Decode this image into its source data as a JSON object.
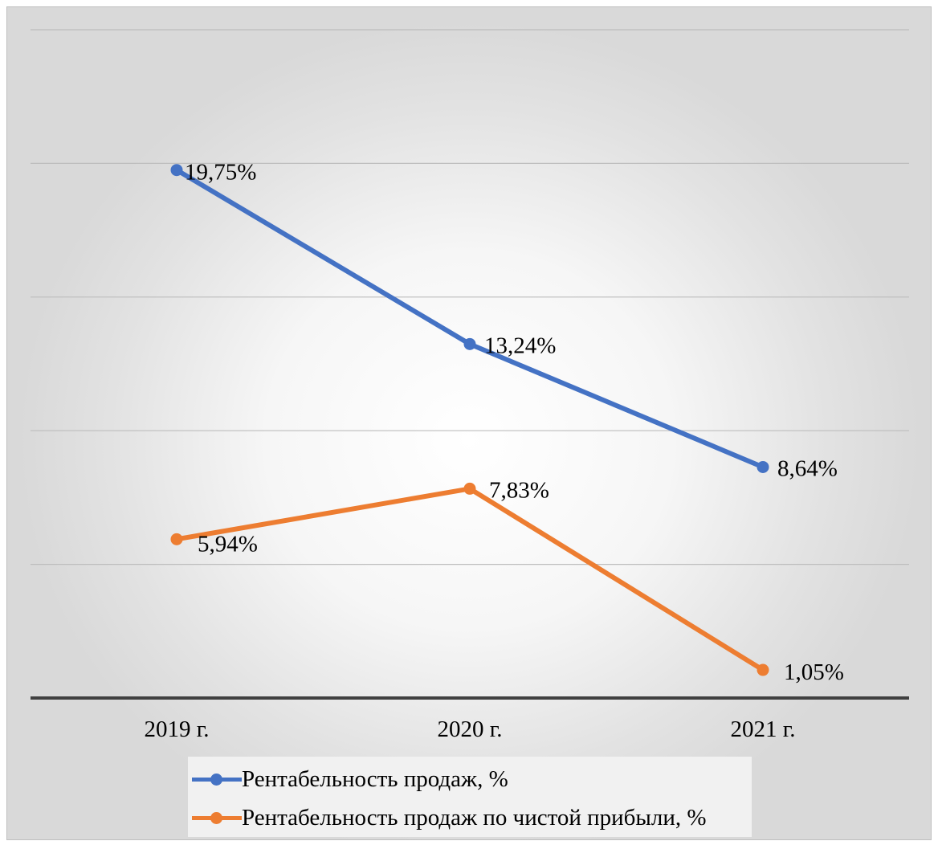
{
  "chart_data": {
    "type": "line",
    "categories": [
      "2019 г.",
      "2020 г.",
      "2021 г."
    ],
    "series": [
      {
        "name": "Рентабельность продаж, %",
        "values": [
          19.75,
          13.24,
          8.64
        ],
        "labels": [
          "19,75%",
          "13,24%",
          "8,64%"
        ],
        "color": "#4472c4"
      },
      {
        "name": "Рентабельность продаж по чистой прибыли, %",
        "values": [
          5.94,
          7.83,
          1.05
        ],
        "labels": [
          "5,94%",
          "7,83%",
          "1,05%"
        ],
        "color": "#ed7d31"
      }
    ],
    "ylim": [
      0,
      25
    ],
    "grid": true,
    "legend_position": "bottom",
    "title": "",
    "xlabel": "",
    "ylabel": ""
  }
}
